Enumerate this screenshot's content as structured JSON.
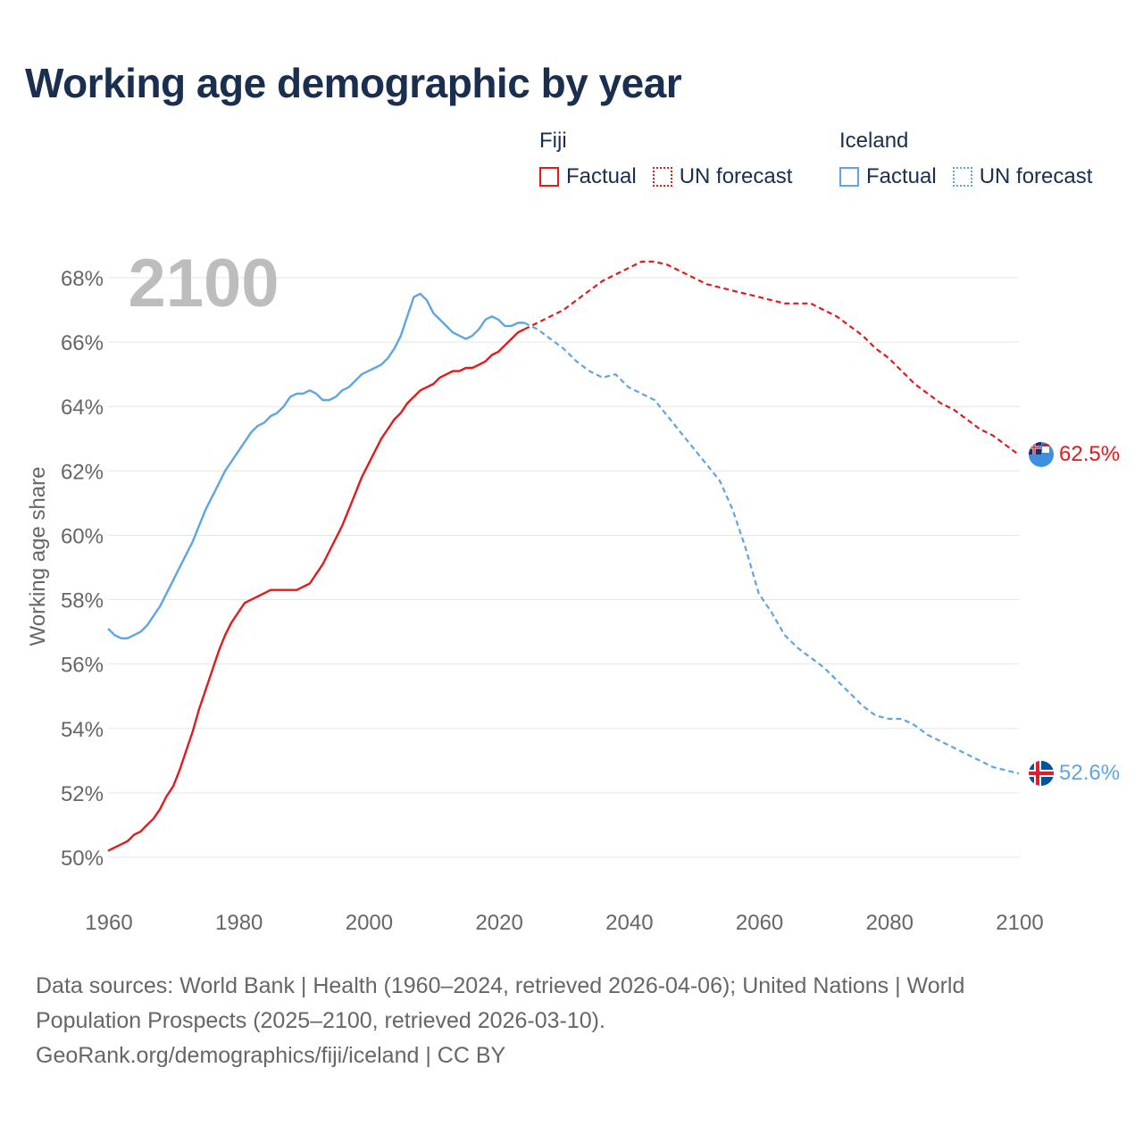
{
  "title": "Working age demographic by year",
  "legend": {
    "groups": [
      {
        "name": "Fiji",
        "color": "#e3191c",
        "factual_label": "Factual",
        "forecast_label": "UN forecast"
      },
      {
        "name": "Iceland",
        "color": "#5fa4e3",
        "factual_label": "Factual",
        "forecast_label": "UN forecast"
      }
    ]
  },
  "year_label": "2100",
  "footer": {
    "line1": "Data sources: World Bank | Health (1960–2024, retrieved 2026-04-06); United Nations | World",
    "line2": "Population Prospects (2025–2100, retrieved 2026-03-10).",
    "line3": "GeoRank.org/demographics/fiji/iceland | CC BY"
  },
  "chart_data": {
    "type": "line",
    "title": "Working age demographic by year",
    "xlabel": "",
    "ylabel": "Working age share",
    "xlim": [
      1960,
      2100
    ],
    "ylim": [
      49.5,
      69
    ],
    "x_ticks": [
      1960,
      1980,
      2000,
      2020,
      2040,
      2060,
      2080,
      2100
    ],
    "y_ticks": [
      50,
      52,
      54,
      56,
      58,
      60,
      62,
      64,
      66,
      68
    ],
    "y_tick_labels": [
      "50%",
      "52%",
      "54%",
      "56%",
      "58%",
      "60%",
      "62%",
      "64%",
      "66%",
      "68%"
    ],
    "x_tick_labels": [
      "1960",
      "1980",
      "2000",
      "2020",
      "2040",
      "2060",
      "2080",
      "2100"
    ],
    "series": [
      {
        "name": "Fiji",
        "color": "#e3191c",
        "end_label": "62.5%",
        "factual": {
          "x": [
            1960,
            1962,
            1963,
            1964,
            1965,
            1966,
            1967,
            1968,
            1969,
            1970,
            1971,
            1972,
            1973,
            1974,
            1975,
            1976,
            1977,
            1978,
            1979,
            1980,
            1981,
            1982,
            1983,
            1984,
            1985,
            1986,
            1987,
            1988,
            1989,
            1990,
            1991,
            1992,
            1993,
            1994,
            1995,
            1996,
            1997,
            1998,
            1999,
            2000,
            2001,
            2002,
            2003,
            2004,
            2005,
            2006,
            2007,
            2008,
            2009,
            2010,
            2011,
            2012,
            2013,
            2014,
            2015,
            2016,
            2017,
            2018,
            2019,
            2020,
            2021,
            2022,
            2023,
            2024
          ],
          "y": [
            50.2,
            50.4,
            50.5,
            50.7,
            50.8,
            51.0,
            51.2,
            51.5,
            51.9,
            52.2,
            52.7,
            53.3,
            53.9,
            54.6,
            55.2,
            55.8,
            56.4,
            56.9,
            57.3,
            57.6,
            57.9,
            58.0,
            58.1,
            58.2,
            58.3,
            58.3,
            58.3,
            58.3,
            58.3,
            58.4,
            58.5,
            58.8,
            59.1,
            59.5,
            59.9,
            60.3,
            60.8,
            61.3,
            61.8,
            62.2,
            62.6,
            63.0,
            63.3,
            63.6,
            63.8,
            64.1,
            64.3,
            64.5,
            64.6,
            64.7,
            64.9,
            65.0,
            65.1,
            65.1,
            65.2,
            65.2,
            65.3,
            65.4,
            65.6,
            65.7,
            65.9,
            66.1,
            66.3,
            66.4
          ]
        },
        "forecast": {
          "x": [
            2024,
            2026,
            2028,
            2030,
            2032,
            2034,
            2036,
            2038,
            2040,
            2042,
            2044,
            2046,
            2048,
            2050,
            2052,
            2054,
            2056,
            2058,
            2060,
            2062,
            2064,
            2066,
            2068,
            2070,
            2072,
            2074,
            2076,
            2078,
            2080,
            2082,
            2084,
            2086,
            2088,
            2090,
            2092,
            2094,
            2096,
            2098,
            2100
          ],
          "y": [
            66.4,
            66.6,
            66.8,
            67.0,
            67.3,
            67.6,
            67.9,
            68.1,
            68.3,
            68.5,
            68.5,
            68.4,
            68.2,
            68.0,
            67.8,
            67.7,
            67.6,
            67.5,
            67.4,
            67.3,
            67.2,
            67.2,
            67.2,
            67.0,
            66.8,
            66.5,
            66.2,
            65.8,
            65.5,
            65.1,
            64.7,
            64.4,
            64.1,
            63.9,
            63.6,
            63.3,
            63.1,
            62.8,
            62.5
          ]
        }
      },
      {
        "name": "Iceland",
        "color": "#5fa4e3",
        "end_label": "52.6%",
        "factual": {
          "x": [
            1960,
            1961,
            1962,
            1963,
            1964,
            1965,
            1966,
            1967,
            1968,
            1969,
            1970,
            1971,
            1972,
            1973,
            1974,
            1975,
            1976,
            1977,
            1978,
            1979,
            1980,
            1981,
            1982,
            1983,
            1984,
            1985,
            1986,
            1987,
            1988,
            1989,
            1990,
            1991,
            1992,
            1993,
            1994,
            1995,
            1996,
            1997,
            1998,
            1999,
            2000,
            2001,
            2002,
            2003,
            2004,
            2005,
            2006,
            2007,
            2008,
            2009,
            2010,
            2011,
            2012,
            2013,
            2014,
            2015,
            2016,
            2017,
            2018,
            2019,
            2020,
            2021,
            2022,
            2023,
            2024
          ],
          "y": [
            57.1,
            56.9,
            56.8,
            56.8,
            56.9,
            57.0,
            57.2,
            57.5,
            57.8,
            58.2,
            58.6,
            59.0,
            59.4,
            59.8,
            60.3,
            60.8,
            61.2,
            61.6,
            62.0,
            62.3,
            62.6,
            62.9,
            63.2,
            63.4,
            63.5,
            63.7,
            63.8,
            64.0,
            64.3,
            64.4,
            64.4,
            64.5,
            64.4,
            64.2,
            64.2,
            64.3,
            64.5,
            64.6,
            64.8,
            65.0,
            65.1,
            65.2,
            65.3,
            65.5,
            65.8,
            66.2,
            66.8,
            67.4,
            67.5,
            67.3,
            66.9,
            66.7,
            66.5,
            66.3,
            66.2,
            66.1,
            66.2,
            66.4,
            66.7,
            66.8,
            66.7,
            66.5,
            66.5,
            66.6,
            66.6
          ]
        },
        "forecast": {
          "x": [
            2024,
            2026,
            2028,
            2030,
            2032,
            2034,
            2036,
            2038,
            2040,
            2042,
            2044,
            2046,
            2048,
            2050,
            2052,
            2054,
            2056,
            2058,
            2060,
            2062,
            2064,
            2066,
            2068,
            2070,
            2072,
            2074,
            2076,
            2078,
            2080,
            2082,
            2084,
            2086,
            2088,
            2090,
            2092,
            2094,
            2096,
            2098,
            2100
          ],
          "y": [
            66.6,
            66.4,
            66.1,
            65.8,
            65.4,
            65.1,
            64.9,
            65.0,
            64.6,
            64.4,
            64.2,
            63.7,
            63.2,
            62.7,
            62.2,
            61.7,
            60.8,
            59.6,
            58.2,
            57.6,
            56.9,
            56.5,
            56.2,
            55.9,
            55.5,
            55.1,
            54.7,
            54.4,
            54.3,
            54.3,
            54.1,
            53.8,
            53.6,
            53.4,
            53.2,
            53.0,
            52.8,
            52.7,
            52.6
          ]
        }
      }
    ]
  }
}
